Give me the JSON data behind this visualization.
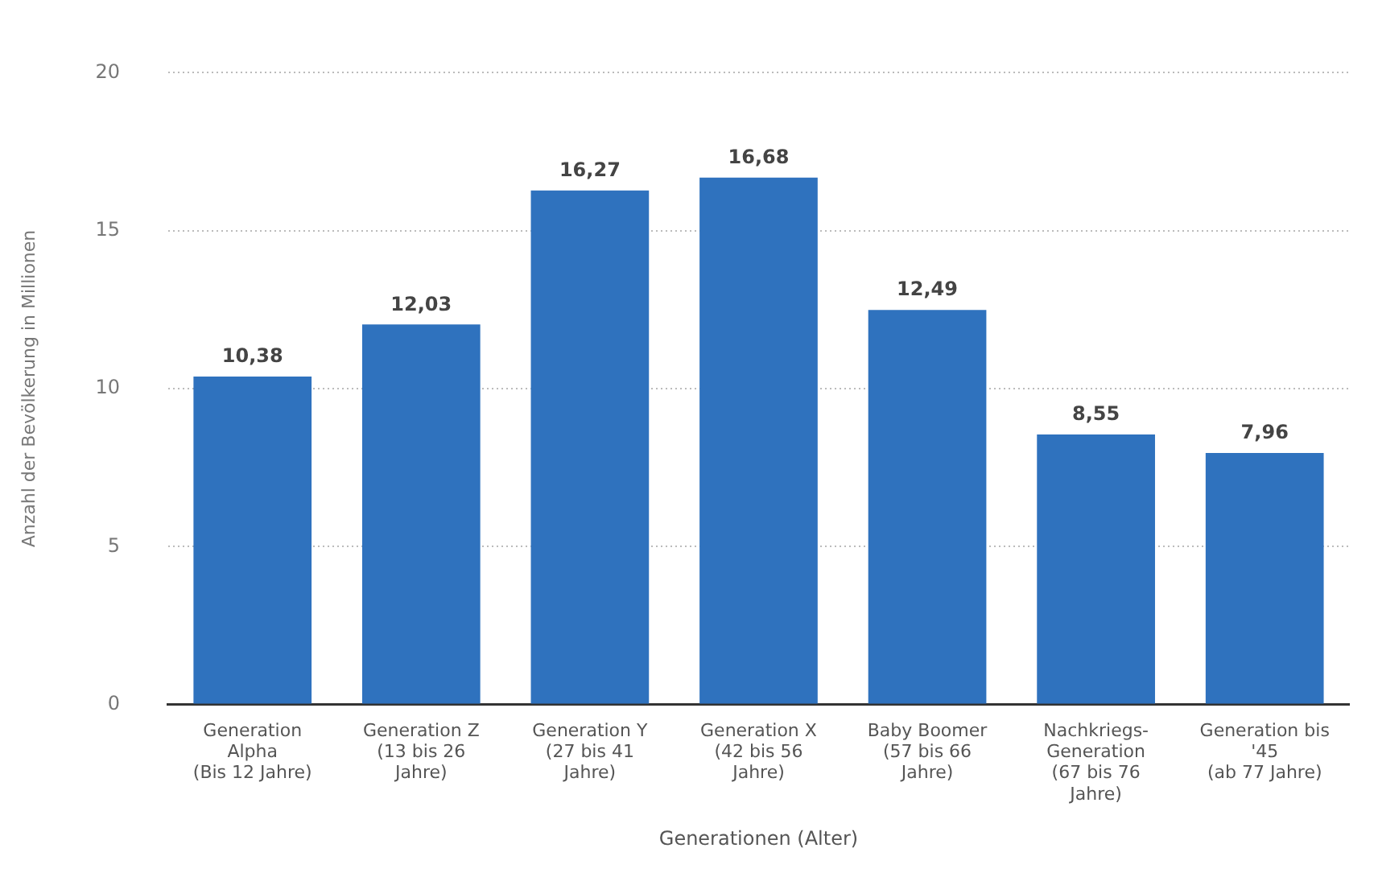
{
  "chart_data": {
    "type": "bar",
    "xlabel": "Generationen (Alter)",
    "ylabel": "Anzahl der Bevölkerung in Millionen",
    "categories": [
      "Generation Alpha (Bis 12 Jahre)",
      "Generation Z (13 bis 26 Jahre)",
      "Generation Y (27 bis 41 Jahre)",
      "Generation X (42 bis 56 Jahre)",
      "Baby Boomer (57 bis 66 Jahre)",
      "Nachkriegs-Generation (67 bis 76 Jahre)",
      "Generation bis '45 (ab 77 Jahre)"
    ],
    "values": [
      10.38,
      12.03,
      16.27,
      16.68,
      12.49,
      8.55,
      7.96
    ],
    "value_labels": [
      "10,38",
      "12,03",
      "16,27",
      "16,68",
      "12,49",
      "8,55",
      "7,96"
    ],
    "color": "#2f72be",
    "ylim": [
      0,
      20
    ],
    "yticks": [
      0,
      5,
      10,
      15,
      20
    ],
    "grid": "y",
    "legend": false
  }
}
